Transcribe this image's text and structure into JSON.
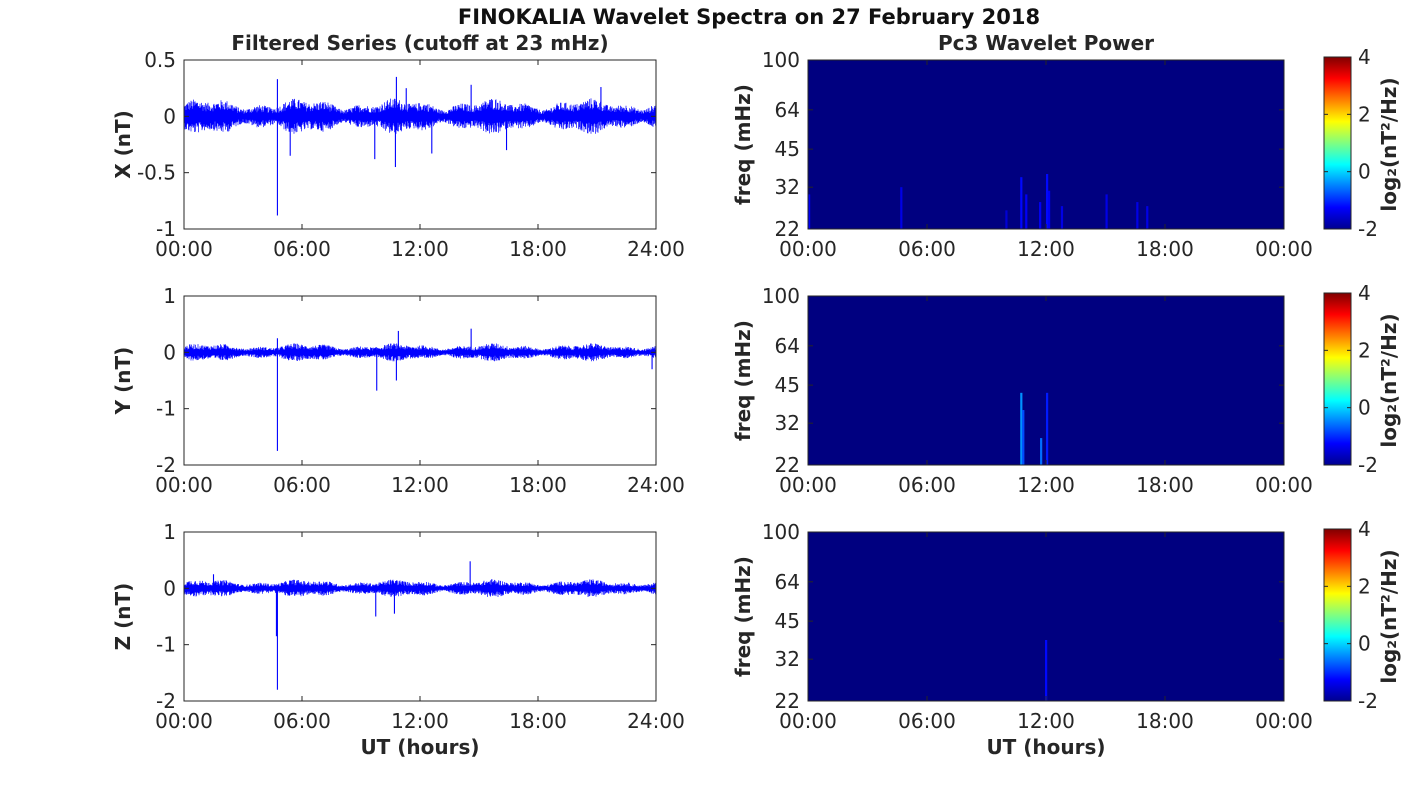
{
  "figure": {
    "title": "FINOKALIA Wavelet Spectra on 27 February 2018"
  },
  "chart_data": [
    {
      "type": "line",
      "panel": "left-top",
      "title": "Filtered Series (cutoff at 23 mHz)",
      "xlabel": "",
      "ylabel": "X (nT)",
      "xlim": [
        0,
        24
      ],
      "ylim": [
        -1,
        0.5
      ],
      "xticks": [
        "00:00",
        "06:00",
        "12:00",
        "18:00",
        "24:00"
      ],
      "yticks": [
        "0.5",
        "0",
        "-0.5",
        "-1"
      ],
      "ytick_values": [
        0.5,
        0,
        -0.5,
        -1
      ],
      "color": "#0000ff",
      "noise_amplitude": 0.11,
      "spikes": [
        {
          "t": 4.75,
          "v": -0.88
        },
        {
          "t": 4.75,
          "v": 0.33
        },
        {
          "t": 5.4,
          "v": -0.35
        },
        {
          "t": 9.7,
          "v": -0.38
        },
        {
          "t": 10.75,
          "v": -0.45
        },
        {
          "t": 10.8,
          "v": 0.35
        },
        {
          "t": 11.3,
          "v": 0.25
        },
        {
          "t": 12.6,
          "v": -0.33
        },
        {
          "t": 14.6,
          "v": 0.28
        },
        {
          "t": 16.4,
          "v": -0.3
        },
        {
          "t": 21.2,
          "v": 0.26
        }
      ]
    },
    {
      "type": "heatmap",
      "panel": "right-top",
      "title": "Pc3 Wavelet Power",
      "xlabel": "",
      "ylabel": "freq (mHz)",
      "xticks": [
        "00:00",
        "06:00",
        "12:00",
        "18:00",
        "00:00"
      ],
      "yticks": [
        "100",
        "64",
        "45",
        "32",
        "22"
      ],
      "ytick_values": [
        100,
        64,
        45,
        32,
        22
      ],
      "ylim": [
        22,
        100
      ],
      "yscale": "log",
      "xlim": [
        0,
        24
      ],
      "colorbar_label": "log₂(nT²/Hz)",
      "colorbar_ticks": [
        "4",
        "2",
        "0",
        "-2"
      ],
      "colorbar_range": [
        -2,
        4
      ],
      "background_value": -2,
      "events": [
        {
          "t": 0.05,
          "f_top": 30,
          "value": -1.3
        },
        {
          "t": 4.7,
          "f_top": 32,
          "value": -1.4
        },
        {
          "t": 10.0,
          "f_top": 26,
          "value": -1.5
        },
        {
          "t": 10.75,
          "f_top": 35,
          "value": -1.2
        },
        {
          "t": 11.0,
          "f_top": 30,
          "value": -1.3
        },
        {
          "t": 11.7,
          "f_top": 28,
          "value": -1.3
        },
        {
          "t": 12.05,
          "f_top": 36,
          "value": -1.2
        },
        {
          "t": 12.15,
          "f_top": 31,
          "value": -1.3
        },
        {
          "t": 12.8,
          "f_top": 27,
          "value": -1.4
        },
        {
          "t": 15.05,
          "f_top": 30,
          "value": -1.4
        },
        {
          "t": 16.6,
          "f_top": 28,
          "value": -1.4
        },
        {
          "t": 17.1,
          "f_top": 27,
          "value": -1.4
        }
      ]
    },
    {
      "type": "line",
      "panel": "left-middle",
      "title": "",
      "xlabel": "",
      "ylabel": "Y (nT)",
      "xlim": [
        0,
        24
      ],
      "ylim": [
        -2,
        1
      ],
      "xticks": [
        "00:00",
        "06:00",
        "12:00",
        "18:00",
        "24:00"
      ],
      "yticks": [
        "1",
        "0",
        "-1",
        "-2"
      ],
      "ytick_values": [
        1,
        0,
        -1,
        -2
      ],
      "color": "#0000ff",
      "noise_amplitude": 0.11,
      "spikes": [
        {
          "t": 4.75,
          "v": -1.75
        },
        {
          "t": 4.75,
          "v": 0.25
        },
        {
          "t": 9.8,
          "v": -0.68
        },
        {
          "t": 10.8,
          "v": -0.5
        },
        {
          "t": 10.9,
          "v": 0.38
        },
        {
          "t": 14.6,
          "v": 0.42
        },
        {
          "t": 23.8,
          "v": -0.3
        }
      ]
    },
    {
      "type": "heatmap",
      "panel": "right-middle",
      "title": "",
      "xlabel": "",
      "ylabel": "freq (mHz)",
      "xticks": [
        "00:00",
        "06:00",
        "12:00",
        "18:00",
        "00:00"
      ],
      "yticks": [
        "100",
        "64",
        "45",
        "32",
        "22"
      ],
      "ytick_values": [
        100,
        64,
        45,
        32,
        22
      ],
      "ylim": [
        22,
        100
      ],
      "yscale": "log",
      "xlim": [
        0,
        24
      ],
      "colorbar_label": "log₂(nT²/Hz)",
      "colorbar_ticks": [
        "4",
        "2",
        "0",
        "-2"
      ],
      "colorbar_range": [
        -2,
        4
      ],
      "background_value": -2,
      "events": [
        {
          "t": 10.75,
          "f_top": 42,
          "value": -0.4
        },
        {
          "t": 10.85,
          "f_top": 36,
          "value": -0.8
        },
        {
          "t": 11.75,
          "f_top": 28,
          "value": -0.6
        },
        {
          "t": 12.05,
          "f_top": 42,
          "value": -1.1
        }
      ]
    },
    {
      "type": "line",
      "panel": "left-bottom",
      "title": "",
      "xlabel": "UT (hours)",
      "ylabel": "Z (nT)",
      "xlim": [
        0,
        24
      ],
      "ylim": [
        -2,
        1
      ],
      "xticks": [
        "00:00",
        "06:00",
        "12:00",
        "18:00",
        "24:00"
      ],
      "yticks": [
        "1",
        "0",
        "-1",
        "-2"
      ],
      "ytick_values": [
        1,
        0,
        -1,
        -2
      ],
      "color": "#0000ff",
      "noise_amplitude": 0.11,
      "spikes": [
        {
          "t": 4.75,
          "v": -1.8
        },
        {
          "t": 4.7,
          "v": -0.85
        },
        {
          "t": 9.75,
          "v": -0.5
        },
        {
          "t": 10.7,
          "v": -0.45
        },
        {
          "t": 14.55,
          "v": 0.48
        },
        {
          "t": 1.5,
          "v": 0.25
        }
      ]
    },
    {
      "type": "heatmap",
      "panel": "right-bottom",
      "title": "",
      "xlabel": "UT (hours)",
      "ylabel": "freq (mHz)",
      "xticks": [
        "00:00",
        "06:00",
        "12:00",
        "18:00",
        "00:00"
      ],
      "yticks": [
        "100",
        "64",
        "45",
        "32",
        "22"
      ],
      "ytick_values": [
        100,
        64,
        45,
        32,
        22
      ],
      "ylim": [
        22,
        100
      ],
      "yscale": "log",
      "xlim": [
        0,
        24
      ],
      "colorbar_label": "log₂(nT²/Hz)",
      "colorbar_ticks": [
        "4",
        "2",
        "0",
        "-2"
      ],
      "colorbar_range": [
        -2,
        4
      ],
      "background_value": -2,
      "events": [
        {
          "t": 12.0,
          "f_top": 38,
          "value": -1.2
        }
      ]
    }
  ]
}
